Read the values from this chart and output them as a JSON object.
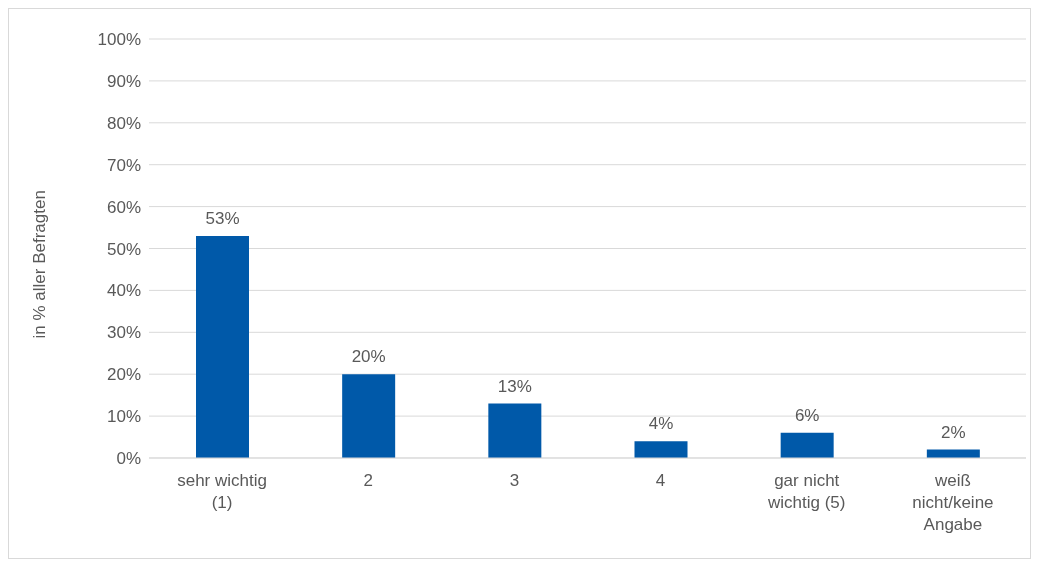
{
  "chart_data": {
    "type": "bar",
    "ylabel": "in % aller Befragten",
    "categories": [
      "sehr wichtig (1)",
      "2",
      "3",
      "4",
      "gar nicht wichtig (5)",
      "weiß nicht/keine Angabe"
    ],
    "values": [
      53,
      20,
      13,
      4,
      6,
      2
    ],
    "color": "#0059a9",
    "value_labels": [
      "53%",
      "20%",
      "13%",
      "4%",
      "6%",
      "2%"
    ],
    "ylim": [
      0,
      100
    ],
    "yticks": [
      {
        "value": 0,
        "label": "0%"
      },
      {
        "value": 10,
        "label": "10%"
      },
      {
        "value": 20,
        "label": "20%"
      },
      {
        "value": 30,
        "label": "30%"
      },
      {
        "value": 40,
        "label": "40%"
      },
      {
        "value": 50,
        "label": "50%"
      },
      {
        "value": 60,
        "label": "60%"
      },
      {
        "value": 70,
        "label": "70%"
      },
      {
        "value": 80,
        "label": "80%"
      },
      {
        "value": 90,
        "label": "90%"
      },
      {
        "value": 100,
        "label": "100%"
      }
    ],
    "grid": "y",
    "legend": false
  }
}
